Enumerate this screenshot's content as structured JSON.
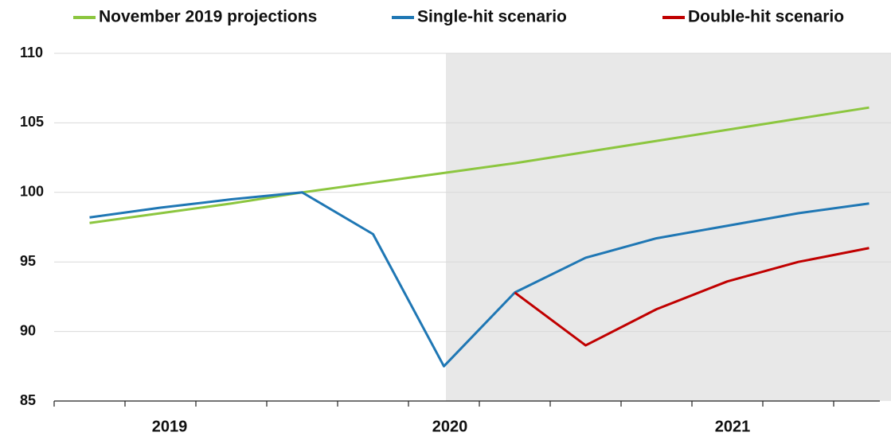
{
  "chart_data": {
    "type": "line",
    "categories": [
      null,
      null,
      null,
      null,
      null,
      null,
      null,
      null,
      null,
      null,
      null,
      null
    ],
    "year_labels": [
      "2019",
      "2020",
      "2021"
    ],
    "series": [
      {
        "name": "November 2019 projections",
        "color": "#8cc63f",
        "values": [
          97.8,
          98.5,
          99.2,
          100,
          100.7,
          101.4,
          102.1,
          102.9,
          103.7,
          104.5,
          105.3,
          106.1
        ]
      },
      {
        "name": "Single-hit scenario",
        "color": "#1f77b4",
        "values": [
          98.2,
          98.9,
          99.5,
          100,
          97,
          87.5,
          92.8,
          95.3,
          96.7,
          97.6,
          98.5,
          99.2
        ]
      },
      {
        "name": "Double-hit scenario",
        "color": "#c00000",
        "values": [
          null,
          null,
          null,
          null,
          null,
          null,
          92.8,
          89,
          91.6,
          93.6,
          95,
          96
        ]
      }
    ],
    "ylim": [
      85,
      110
    ],
    "yticks": [
      85,
      90,
      95,
      100,
      105,
      110
    ],
    "grid": true,
    "legend": "top"
  }
}
